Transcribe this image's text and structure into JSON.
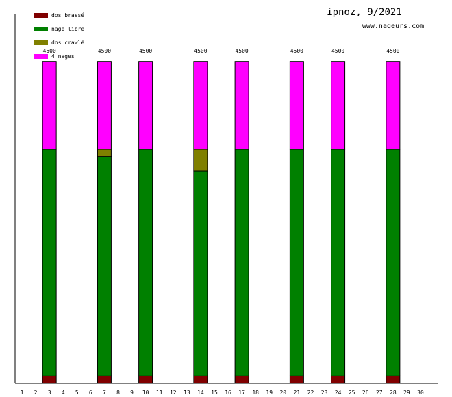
{
  "header": {
    "title": "ipnoz, 9/2021",
    "site": "www.nageurs.com"
  },
  "chart_data": {
    "type": "bar",
    "stacked": true,
    "title": "ipnoz, 9/2021",
    "xlabel": "",
    "ylabel": "",
    "ylim": [
      0,
      4500
    ],
    "grid": false,
    "legend_position": "top-left",
    "x_ticks": [
      "1",
      "2",
      "3",
      "4",
      "5",
      "6",
      "7",
      "8",
      "9",
      "10",
      "11",
      "12",
      "13",
      "14",
      "15",
      "16",
      "17",
      "18",
      "19",
      "20",
      "21",
      "22",
      "23",
      "24",
      "25",
      "26",
      "27",
      "28",
      "29",
      "30"
    ],
    "series": [
      {
        "name": "dos brassé",
        "color": "#800000"
      },
      {
        "name": "nage libre",
        "color": "#008000"
      },
      {
        "name": "dos crawlé",
        "color": "#808000"
      },
      {
        "name": "4 nages",
        "color": "#ff00ff"
      }
    ],
    "bars": [
      {
        "day": 3,
        "total": "4500",
        "values": [
          100,
          3100,
          0,
          1200
        ]
      },
      {
        "day": 7,
        "total": "4500",
        "values": [
          100,
          3000,
          100,
          1200
        ]
      },
      {
        "day": 10,
        "total": "4500",
        "values": [
          100,
          3100,
          0,
          1200
        ]
      },
      {
        "day": 14,
        "total": "4500",
        "values": [
          100,
          2800,
          300,
          1200
        ]
      },
      {
        "day": 17,
        "total": "4500",
        "values": [
          100,
          3100,
          0,
          1200
        ]
      },
      {
        "day": 21,
        "total": "4500",
        "values": [
          100,
          3100,
          0,
          1200
        ]
      },
      {
        "day": 24,
        "total": "4500",
        "values": [
          100,
          3100,
          0,
          1200
        ]
      },
      {
        "day": 28,
        "total": "4500",
        "values": [
          100,
          3100,
          0,
          1200
        ]
      }
    ]
  }
}
